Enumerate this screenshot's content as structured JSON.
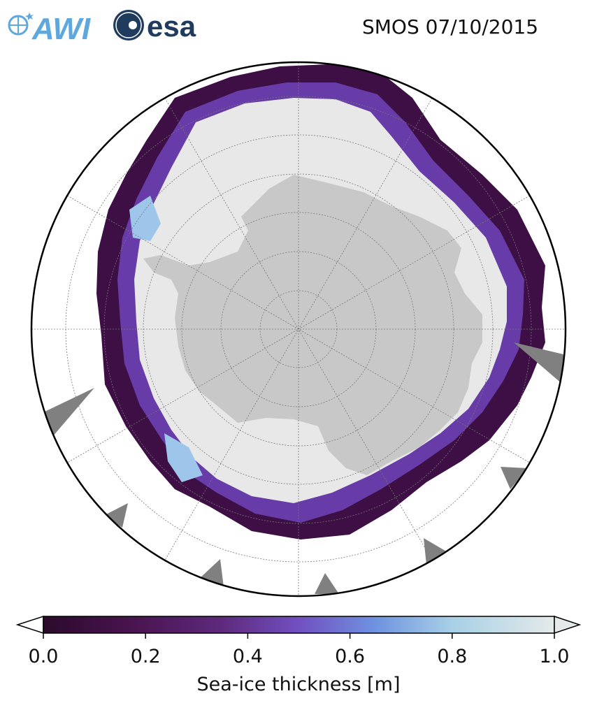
{
  "header": {
    "logo_awi": "AWI",
    "logo_esa": "esa",
    "title": "SMOS 07/10/2015"
  },
  "map": {
    "projection": "south-polar-stereographic",
    "land_color": "#c8c8c8",
    "ocean_color": "#ffffff",
    "no_data_color": "#808080",
    "graticule": "dashed grey"
  },
  "colorbar": {
    "label": "Sea-ice thickness [m]",
    "min": 0.0,
    "max": 1.0,
    "ticks": [
      "0.0",
      "0.2",
      "0.4",
      "0.6",
      "0.8",
      "1.0"
    ],
    "extend": "both",
    "colors": [
      "#2b0a2c",
      "#4a1450",
      "#5e2a7d",
      "#7150c0",
      "#6f93e0",
      "#a8d0e6",
      "#e4eaea"
    ]
  }
}
